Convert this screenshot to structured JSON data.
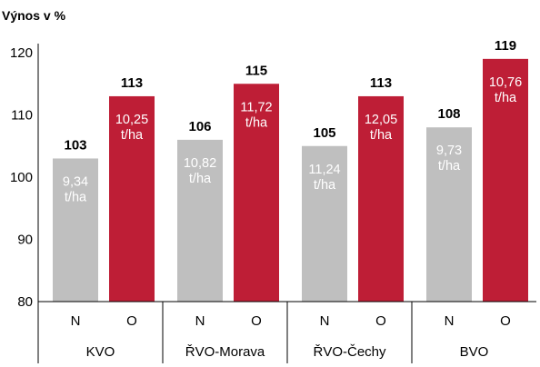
{
  "chart_data": {
    "type": "bar",
    "ylabel": "Výnos v %",
    "ylim": [
      80,
      120
    ],
    "yticks": [
      "80",
      "90",
      "100",
      "110",
      "120"
    ],
    "grid": false,
    "colors": {
      "N": "#bfbfbf",
      "O": "#be1e36"
    },
    "groups": [
      {
        "name": "KVO",
        "bars": [
          {
            "category": "N",
            "value": 103,
            "value_label": "103",
            "inner_line1": "9,34",
            "inner_line2": "t/ha"
          },
          {
            "category": "O",
            "value": 113,
            "value_label": "113",
            "inner_line1": "10,25",
            "inner_line2": "t/ha"
          }
        ]
      },
      {
        "name": "ŘVO-Morava",
        "bars": [
          {
            "category": "N",
            "value": 106,
            "value_label": "106",
            "inner_line1": "10,82",
            "inner_line2": "t/ha"
          },
          {
            "category": "O",
            "value": 115,
            "value_label": "115",
            "inner_line1": "11,72",
            "inner_line2": "t/ha"
          }
        ]
      },
      {
        "name": "ŘVO-Čechy",
        "bars": [
          {
            "category": "N",
            "value": 105,
            "value_label": "105",
            "inner_line1": "11,24",
            "inner_line2": "t/ha"
          },
          {
            "category": "O",
            "value": 113,
            "value_label": "113",
            "inner_line1": "12,05",
            "inner_line2": "t/ha"
          }
        ]
      },
      {
        "name": "BVO",
        "bars": [
          {
            "category": "N",
            "value": 108,
            "value_label": "108",
            "inner_line1": "9,73",
            "inner_line2": "t/ha"
          },
          {
            "category": "O",
            "value": 119,
            "value_label": "119",
            "inner_line1": "10,76",
            "inner_line2": "t/ha"
          }
        ]
      }
    ]
  }
}
